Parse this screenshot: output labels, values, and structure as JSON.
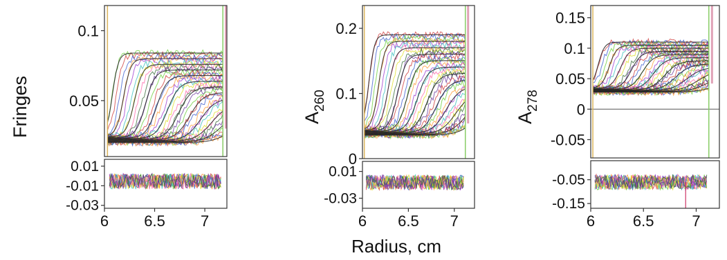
{
  "figure": {
    "xlabel": "Radius, cm"
  },
  "chart_data": [
    {
      "type": "scatter",
      "ylabel": "Fringes",
      "ylabel_sub": "",
      "xlim": [
        6.0,
        7.22
      ],
      "xticks": [
        "6",
        "6.5",
        "7"
      ],
      "ylim": [
        0.01,
        0.118
      ],
      "yticks": [
        "0.05",
        "0.1"
      ],
      "residual_ylim": [
        -0.033,
        0.017
      ],
      "residual_yticks": [
        "0.01",
        "-0.01",
        "-0.03"
      ],
      "meniscus": 6.03,
      "bottom": 7.18,
      "plateau_start": 0.084,
      "plateau_end": 0.084,
      "baseline": 0.025,
      "zero_line": false,
      "colors": [
        "#66cc33",
        "#cc3333",
        "#3355cc",
        "#ff9933",
        "#9933cc",
        "#33bbbb",
        "#dddd22",
        "#ff66aa",
        "#336633",
        "#663399"
      ]
    },
    {
      "type": "scatter",
      "ylabel": "A",
      "ylabel_sub": "260",
      "xlim": [
        6.0,
        7.22
      ],
      "xticks": [
        "6",
        "6.5",
        "7"
      ],
      "ylim": [
        0.0,
        0.235
      ],
      "yticks": [
        "0",
        "0.1",
        "0.2"
      ],
      "residual_ylim": [
        -0.045,
        0.025
      ],
      "residual_yticks": [
        "0.01",
        "-0.03"
      ],
      "meniscus": 6.02,
      "bottom": 7.12,
      "plateau_start": 0.19,
      "plateau_end": 0.19,
      "baseline": 0.045,
      "zero_line": false,
      "colors": [
        "#cc3333",
        "#3355cc",
        "#66cc33",
        "#ff9933",
        "#9933cc",
        "#33bbbb",
        "#ff66aa",
        "#dddd22",
        "#336633",
        "#663399"
      ]
    },
    {
      "type": "scatter",
      "ylabel": "A",
      "ylabel_sub": "278",
      "xlim": [
        6.0,
        7.22
      ],
      "xticks": [
        "6",
        "6.5",
        "7"
      ],
      "ylim": [
        -0.08,
        0.17
      ],
      "yticks": [
        "0.15",
        "0.1",
        "0.05",
        "0",
        "-0.05"
      ],
      "residual_ylim": [
        -0.17,
        0.03
      ],
      "residual_yticks": [
        "-0.05",
        "-0.15"
      ],
      "meniscus": 6.02,
      "bottom": 7.12,
      "plateau_start": 0.11,
      "plateau_end": 0.11,
      "baseline": 0.035,
      "zero_line": true,
      "colors": [
        "#cc3333",
        "#3355cc",
        "#66cc33",
        "#ff9933",
        "#9933cc",
        "#33bbbb",
        "#ff66aa",
        "#dddd22",
        "#336633",
        "#663399"
      ]
    }
  ]
}
